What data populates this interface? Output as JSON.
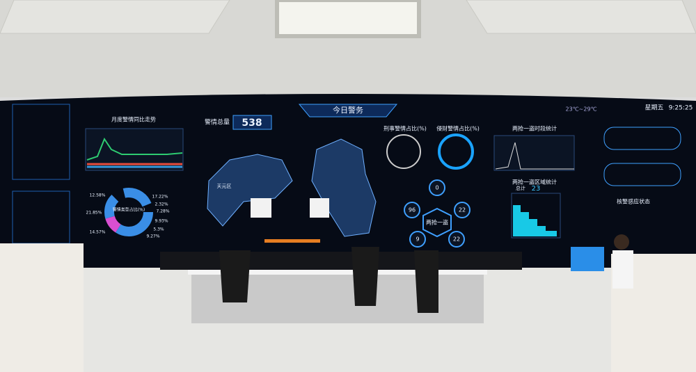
{
  "screen": {
    "title": "今日警务",
    "total_label": "警情总量",
    "total": 538,
    "weekday": "星期五",
    "time": "9:25:25",
    "weather": "23℃~29℃",
    "panels": {
      "monthly_trend": "月度警情同比走势",
      "criminal_share": "刑事警情占比(%)",
      "property_share": "侵财警情占比(%)",
      "period_stats": "两抢一盗时段统计",
      "region_stats": "两抢一盗区域统计",
      "type_share": "警情类型占比(%)",
      "sensor_status": "核警感应状态"
    },
    "region_total_label": "总计",
    "region_total": 23,
    "hub_label": "两抢一盗",
    "hub_values": [
      0,
      96,
      22,
      9,
      22
    ],
    "type_share_labels": [
      "12.58%",
      "17.22%",
      "2.32%",
      "7.28%",
      "9.93%",
      "5.3%",
      "9.27%",
      "21.85%",
      "14.57%"
    ],
    "map_label": "天元区"
  }
}
